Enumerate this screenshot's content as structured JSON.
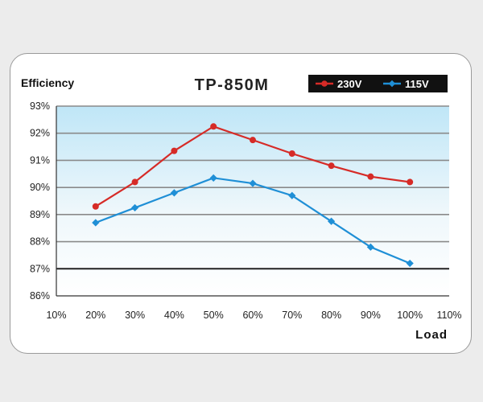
{
  "chart_data": {
    "type": "line",
    "title": "TP-850M",
    "ylabel": "Efficiency",
    "xlabel": "Load",
    "x": [
      20,
      30,
      40,
      50,
      60,
      70,
      80,
      90,
      100
    ],
    "xticks": [
      "10%",
      "20%",
      "30%",
      "40%",
      "50%",
      "60%",
      "70%",
      "80%",
      "90%",
      "100%",
      "110%"
    ],
    "yticks": [
      "93%",
      "92%",
      "91%",
      "90%",
      "89%",
      "88%",
      "87%",
      "86%"
    ],
    "xlim": [
      10,
      110
    ],
    "ylim": [
      86,
      93
    ],
    "grid": true,
    "legend_position": "top-right",
    "series": [
      {
        "name": "230V",
        "color": "#d62b27",
        "marker": "circle",
        "values": [
          89.3,
          90.2,
          91.35,
          92.25,
          91.75,
          91.25,
          90.8,
          90.4,
          90.2
        ]
      },
      {
        "name": "115V",
        "color": "#1f8fd6",
        "marker": "diamond",
        "values": [
          88.7,
          89.25,
          89.8,
          90.35,
          90.15,
          89.7,
          88.75,
          87.8,
          87.2
        ]
      }
    ]
  }
}
